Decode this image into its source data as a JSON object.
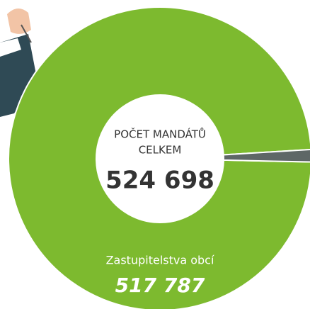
{
  "chart_data": {
    "type": "donut",
    "center_label": [
      "POČET MANDÁTŮ",
      "CELKEM"
    ],
    "total": {
      "value": 524698,
      "label": "524 698"
    },
    "categories": [
      "Zastupitelstva obcí",
      null
    ],
    "values": [
      517787,
      6911
    ],
    "value_labels": [
      "517 787",
      null
    ],
    "colors": [
      "#7dba2f",
      "#5e6766"
    ]
  }
}
